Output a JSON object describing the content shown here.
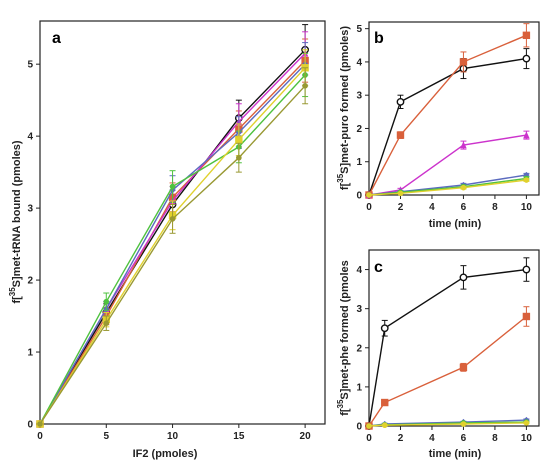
{
  "figure": {
    "panels": [
      {
        "id": "a",
        "label": "a",
        "xlabel": "IF2 (pmoles)",
        "ylabel": "f[",
        "ylabel_sup": "35",
        "ylabel_rest": "S]met-tRNA bound (pmoles)"
      },
      {
        "id": "b",
        "label": "b",
        "xlabel": "time (min)",
        "ylabel": "f[",
        "ylabel_sup": "35",
        "ylabel_rest": "S]met-puro formed (pmoles)"
      },
      {
        "id": "c",
        "label": "c",
        "xlabel": "time (min)",
        "ylabel": "f[",
        "ylabel_sup": "35",
        "ylabel_rest": "S]met-phe formed (pmoles"
      }
    ]
  },
  "chart_data": [
    {
      "panel": "a",
      "type": "line",
      "x": [
        0,
        5,
        10,
        15,
        20
      ],
      "xlim": [
        0,
        21.5
      ],
      "ylim": [
        0,
        5.6
      ],
      "xticks": [
        "0",
        "5",
        "10",
        "15",
        "20"
      ],
      "yticks": [
        "0",
        "1",
        "2",
        "3",
        "4",
        "5"
      ],
      "grid": false,
      "series": [
        {
          "color": "#111111",
          "marker": "circle-open",
          "values": [
            0,
            1.55,
            3.05,
            4.25,
            5.2
          ],
          "errors": [
            0,
            0.12,
            0.2,
            0.25,
            0.35
          ]
        },
        {
          "color": "#d9603b",
          "marker": "square",
          "values": [
            0,
            1.5,
            3.15,
            4.1,
            5.05
          ],
          "errors": [
            0,
            0.12,
            0.2,
            0.25,
            0.3
          ]
        },
        {
          "color": "#cc33cc",
          "marker": "triangle",
          "values": [
            0,
            1.6,
            3.1,
            4.2,
            5.15
          ],
          "errors": [
            0,
            0.1,
            0.2,
            0.25,
            0.3
          ]
        },
        {
          "color": "#5b6bbf",
          "marker": "diamond",
          "values": [
            0,
            1.6,
            3.25,
            4.05,
            5.0
          ],
          "errors": [
            0,
            0.1,
            0.2,
            0.22,
            0.3
          ]
        },
        {
          "color": "#4fc23f",
          "marker": "circle",
          "values": [
            0,
            1.7,
            3.3,
            3.85,
            4.85
          ],
          "errors": [
            0,
            0.12,
            0.22,
            0.22,
            0.3
          ]
        },
        {
          "color": "#e0d12e",
          "marker": "square",
          "values": [
            0,
            1.45,
            2.9,
            3.95,
            4.95
          ],
          "errors": [
            0,
            0.1,
            0.2,
            0.22,
            0.25
          ]
        },
        {
          "color": "#999933",
          "marker": "circle",
          "values": [
            0,
            1.4,
            2.85,
            3.7,
            4.7
          ],
          "errors": [
            0,
            0.1,
            0.2,
            0.2,
            0.25
          ]
        }
      ]
    },
    {
      "panel": "b",
      "type": "line",
      "x": [
        0,
        2,
        6,
        10
      ],
      "xlim": [
        0,
        10.8
      ],
      "ylim": [
        0,
        5.2
      ],
      "xticks": [
        "0",
        "2",
        "4",
        "6",
        "8",
        "10"
      ],
      "yticks": [
        "0",
        "1",
        "2",
        "3",
        "4",
        "5"
      ],
      "grid": false,
      "series": [
        {
          "color": "#111111",
          "marker": "circle-open",
          "values": [
            0,
            2.8,
            3.8,
            4.1
          ],
          "errors": [
            0,
            0.2,
            0.3,
            0.3
          ]
        },
        {
          "color": "#d9603b",
          "marker": "square",
          "values": [
            0,
            1.8,
            4.0,
            4.8
          ],
          "errors": [
            0,
            0.1,
            0.3,
            0.35
          ]
        },
        {
          "color": "#cc33cc",
          "marker": "triangle",
          "values": [
            0,
            0.15,
            1.5,
            1.8
          ],
          "errors": [
            0,
            0.05,
            0.12,
            0.12
          ]
        },
        {
          "color": "#5b6bbf",
          "marker": "diamond",
          "values": [
            0,
            0.1,
            0.3,
            0.6
          ],
          "errors": [
            0,
            0.03,
            0.05,
            0.05
          ]
        },
        {
          "color": "#4fc23f",
          "marker": "circle",
          "values": [
            0,
            0.08,
            0.25,
            0.5
          ],
          "errors": [
            0,
            0.03,
            0.05,
            0.05
          ]
        },
        {
          "color": "#e0d12e",
          "marker": "circle",
          "values": [
            0,
            0.05,
            0.22,
            0.45
          ],
          "errors": [
            0,
            0.02,
            0.04,
            0.04
          ]
        }
      ]
    },
    {
      "panel": "c",
      "type": "line",
      "x": [
        0,
        1,
        6,
        10
      ],
      "xlim": [
        0,
        10.8
      ],
      "ylim": [
        0,
        4.5
      ],
      "xticks": [
        "0",
        "2",
        "4",
        "6",
        "8",
        "10"
      ],
      "yticks": [
        "0",
        "1",
        "2",
        "3",
        "4"
      ],
      "grid": false,
      "series": [
        {
          "color": "#111111",
          "marker": "circle-open",
          "values": [
            0,
            2.5,
            3.8,
            4.0
          ],
          "errors": [
            0,
            0.2,
            0.3,
            0.3
          ]
        },
        {
          "color": "#d9603b",
          "marker": "square",
          "values": [
            0,
            0.6,
            1.5,
            2.8
          ],
          "errors": [
            0,
            0.05,
            0.1,
            0.25
          ]
        },
        {
          "color": "#5b6bbf",
          "marker": "diamond",
          "values": [
            0,
            0.05,
            0.1,
            0.15
          ],
          "errors": [
            0,
            0.02,
            0.02,
            0.03
          ]
        },
        {
          "color": "#4fc23f",
          "marker": "circle",
          "values": [
            0,
            0.03,
            0.08,
            0.1
          ],
          "errors": [
            0,
            0.02,
            0.02,
            0.02
          ]
        },
        {
          "color": "#e0d12e",
          "marker": "circle",
          "values": [
            0,
            0.02,
            0.05,
            0.08
          ],
          "errors": [
            0,
            0.01,
            0.02,
            0.02
          ]
        }
      ]
    }
  ]
}
